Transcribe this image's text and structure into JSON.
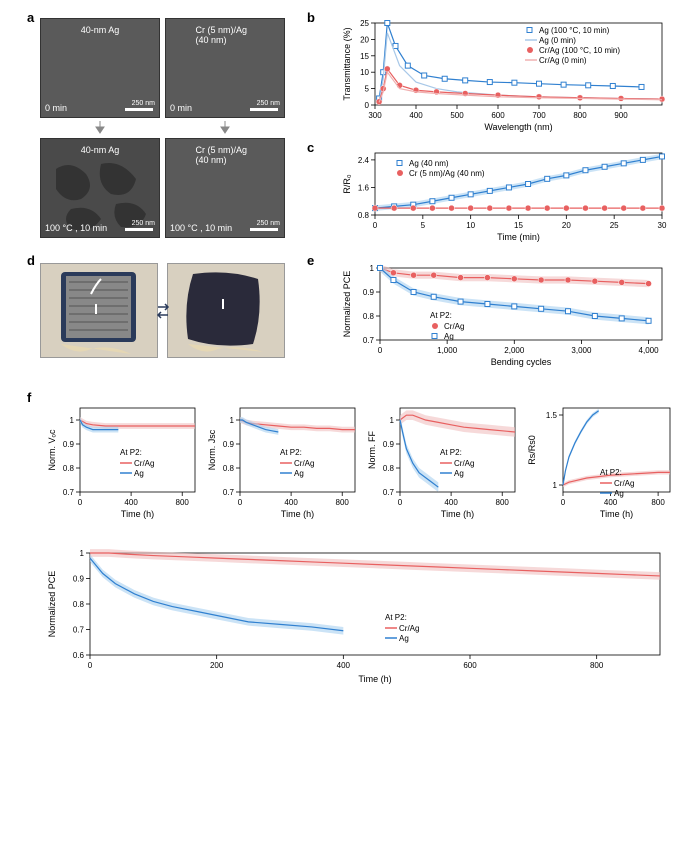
{
  "panel_a": {
    "label": "a",
    "images": [
      {
        "title": "40-nm Ag",
        "time": "0 min",
        "scale": "250 nm"
      },
      {
        "title": "Cr (5 nm)/Ag (40 nm)",
        "time": "0 min",
        "scale": "250 nm"
      },
      {
        "title": "40-nm Ag",
        "time": "100 °C , 10 min",
        "scale": "250 nm"
      },
      {
        "title": "Cr (5 nm)/Ag (40 nm)",
        "time": "100 °C , 10 min",
        "scale": "250 nm"
      }
    ]
  },
  "panel_b": {
    "label": "b",
    "type": "line",
    "title": "",
    "xlabel": "Wavelength (nm)",
    "ylabel": "Transmittance (%)",
    "xlim": [
      300,
      1000
    ],
    "ylim": [
      0,
      25
    ],
    "xticks": [
      300,
      400,
      500,
      600,
      700,
      800,
      900
    ],
    "yticks": [
      0,
      5,
      10,
      15,
      20,
      25
    ],
    "series": [
      {
        "name": "Ag (100 °C, 10 min)",
        "color": "#3080d0",
        "marker": "square",
        "x": [
          310,
          320,
          330,
          350,
          380,
          420,
          470,
          520,
          580,
          640,
          700,
          760,
          820,
          880,
          950
        ],
        "y": [
          2,
          10,
          25,
          18,
          12,
          9,
          8,
          7.5,
          7,
          6.8,
          6.5,
          6.2,
          6,
          5.8,
          5.5
        ]
      },
      {
        "name": "Ag (0 min)",
        "color": "#a8c8e8",
        "marker": "none",
        "x": [
          310,
          320,
          330,
          360,
          400,
          450,
          500,
          600,
          700,
          800,
          900,
          1000
        ],
        "y": [
          1,
          8,
          22,
          12,
          7,
          5,
          4,
          3,
          2.5,
          2.2,
          2,
          1.8
        ]
      },
      {
        "name": "Cr/Ag (100 °C, 10 min)",
        "color": "#e86060",
        "marker": "circle",
        "x": [
          310,
          320,
          330,
          360,
          400,
          450,
          520,
          600,
          700,
          800,
          900,
          1000
        ],
        "y": [
          1,
          5,
          11,
          6,
          4.5,
          4,
          3.5,
          3,
          2.5,
          2.2,
          2,
          1.8
        ]
      },
      {
        "name": "Cr/Ag (0 min)",
        "color": "#f0b0b0",
        "marker": "none",
        "x": [
          310,
          320,
          330,
          360,
          400,
          450,
          520,
          600,
          700,
          800,
          900,
          1000
        ],
        "y": [
          0.8,
          4,
          10,
          5,
          4,
          3.5,
          3,
          2.5,
          2.2,
          2,
          1.8,
          1.6
        ]
      }
    ]
  },
  "panel_c": {
    "label": "c",
    "type": "line",
    "xlabel": "Time (min)",
    "ylabel": "R/R₀",
    "xlim": [
      0,
      30
    ],
    "ylim": [
      0.8,
      2.6
    ],
    "xticks": [
      0,
      5,
      10,
      15,
      20,
      25,
      30
    ],
    "yticks": [
      0.8,
      1.6,
      2.4
    ],
    "series": [
      {
        "name": "Ag (40 nm)",
        "color": "#3080d0",
        "fillcolor": "#a8d0f0",
        "marker": "square",
        "x": [
          0,
          2,
          4,
          6,
          8,
          10,
          12,
          14,
          16,
          18,
          20,
          22,
          24,
          26,
          28,
          30
        ],
        "y": [
          1.0,
          1.05,
          1.1,
          1.2,
          1.3,
          1.4,
          1.5,
          1.6,
          1.7,
          1.85,
          1.95,
          2.1,
          2.2,
          2.3,
          2.4,
          2.5
        ]
      },
      {
        "name": "Cr (5 nm)/Ag (40 nm)",
        "color": "#e86060",
        "marker": "circle",
        "x": [
          0,
          2,
          4,
          6,
          8,
          10,
          12,
          14,
          16,
          18,
          20,
          22,
          24,
          26,
          28,
          30
        ],
        "y": [
          1.0,
          1.0,
          1.0,
          1.0,
          1.0,
          1.0,
          1.0,
          1.0,
          1.0,
          1.0,
          1.0,
          1.0,
          1.0,
          1.0,
          1.0,
          1.0
        ]
      }
    ]
  },
  "panel_d": {
    "label": "d"
  },
  "panel_e": {
    "label": "e",
    "type": "line",
    "xlabel": "Bending cycles",
    "ylabel": "Normalized PCE",
    "xlim": [
      0,
      4200
    ],
    "ylim": [
      0.7,
      1.0
    ],
    "xticks": [
      0,
      1000,
      2000,
      3000,
      4000
    ],
    "yticks": [
      0.7,
      0.8,
      0.9,
      1.0
    ],
    "legend_title": "At P2:",
    "series": [
      {
        "name": "Cr/Ag",
        "color": "#e86060",
        "fillcolor": "#f0c0c0",
        "marker": "circle",
        "x": [
          0,
          200,
          500,
          800,
          1200,
          1600,
          2000,
          2400,
          2800,
          3200,
          3600,
          4000
        ],
        "y": [
          1.0,
          0.98,
          0.97,
          0.97,
          0.96,
          0.96,
          0.955,
          0.95,
          0.95,
          0.945,
          0.94,
          0.935
        ]
      },
      {
        "name": "Ag",
        "color": "#3080d0",
        "fillcolor": "#a8d0f0",
        "marker": "square",
        "x": [
          0,
          200,
          500,
          800,
          1200,
          1600,
          2000,
          2400,
          2800,
          3200,
          3600,
          4000
        ],
        "y": [
          1.0,
          0.95,
          0.9,
          0.88,
          0.86,
          0.85,
          0.84,
          0.83,
          0.82,
          0.8,
          0.79,
          0.78
        ]
      }
    ]
  },
  "panel_f": {
    "label": "f",
    "voc": {
      "xlabel": "Time (h)",
      "ylabel": "Norm. Vₒc",
      "xlim": [
        0,
        900
      ],
      "ylim": [
        0.7,
        1.05
      ],
      "xticks": [
        0,
        400,
        800
      ],
      "yticks": [
        0.7,
        0.8,
        0.9,
        1.0
      ],
      "legend_title": "At P2:",
      "series": [
        {
          "name": "Cr/Ag",
          "color": "#e86060",
          "fillcolor": "#f0c0c0",
          "x": [
            0,
            50,
            100,
            200,
            300,
            400,
            500,
            600,
            700,
            800,
            900
          ],
          "y": [
            1.0,
            0.985,
            0.98,
            0.975,
            0.975,
            0.975,
            0.975,
            0.975,
            0.975,
            0.975,
            0.975
          ]
        },
        {
          "name": "Ag",
          "color": "#3080d0",
          "fillcolor": "#a8d0f0",
          "x": [
            0,
            20,
            50,
            100,
            150,
            200,
            250,
            300
          ],
          "y": [
            1.0,
            0.98,
            0.97,
            0.96,
            0.96,
            0.96,
            0.96,
            0.96
          ]
        }
      ]
    },
    "jsc": {
      "xlabel": "Time (h)",
      "ylabel": "Norm. Jsc",
      "xlim": [
        0,
        900
      ],
      "ylim": [
        0.7,
        1.05
      ],
      "xticks": [
        0,
        400,
        800
      ],
      "yticks": [
        0.7,
        0.8,
        0.9,
        1.0
      ],
      "legend_title": "At P2:",
      "series": [
        {
          "name": "Cr/Ag",
          "color": "#e86060",
          "fillcolor": "#f0c0c0",
          "x": [
            0,
            50,
            100,
            200,
            300,
            400,
            500,
            600,
            700,
            800,
            900
          ],
          "y": [
            1.0,
            0.99,
            0.985,
            0.98,
            0.975,
            0.97,
            0.97,
            0.965,
            0.965,
            0.96,
            0.96
          ]
        },
        {
          "name": "Ag",
          "color": "#3080d0",
          "fillcolor": "#a8d0f0",
          "x": [
            0,
            20,
            50,
            100,
            150,
            200,
            250,
            300
          ],
          "y": [
            1.0,
            1.0,
            0.99,
            0.98,
            0.97,
            0.96,
            0.955,
            0.95
          ]
        }
      ]
    },
    "ff": {
      "xlabel": "Time (h)",
      "ylabel": "Norm. FF",
      "xlim": [
        0,
        900
      ],
      "ylim": [
        0.7,
        1.05
      ],
      "xticks": [
        0,
        400,
        800
      ],
      "yticks": [
        0.7,
        0.8,
        0.9,
        1.0
      ],
      "legend_title": "At P2:",
      "series": [
        {
          "name": "Cr/Ag",
          "color": "#e86060",
          "fillcolor": "#f0c0c0",
          "x": [
            0,
            50,
            100,
            200,
            300,
            400,
            500,
            600,
            700,
            800,
            900
          ],
          "y": [
            1.0,
            1.02,
            1.02,
            1.0,
            0.99,
            0.98,
            0.97,
            0.965,
            0.96,
            0.955,
            0.95
          ]
        },
        {
          "name": "Ag",
          "color": "#3080d0",
          "fillcolor": "#a8d0f0",
          "x": [
            0,
            20,
            50,
            100,
            150,
            200,
            250,
            300
          ],
          "y": [
            1.0,
            0.95,
            0.88,
            0.82,
            0.78,
            0.76,
            0.74,
            0.72
          ]
        }
      ]
    },
    "rs": {
      "xlabel": "Time (h)",
      "ylabel": "Rs/Rs0",
      "xlim": [
        0,
        900
      ],
      "ylim": [
        0.95,
        1.55
      ],
      "xticks": [
        0,
        400,
        800
      ],
      "yticks": [
        1.0,
        1.5
      ],
      "legend_title": "At P2:",
      "series": [
        {
          "name": "Cr/Ag",
          "color": "#e86060",
          "fillcolor": "#f0c0c0",
          "x": [
            0,
            50,
            100,
            200,
            300,
            400,
            500,
            600,
            700,
            800,
            900
          ],
          "y": [
            1.0,
            1.02,
            1.03,
            1.05,
            1.06,
            1.07,
            1.075,
            1.08,
            1.085,
            1.09,
            1.09
          ]
        },
        {
          "name": "Ag",
          "color": "#3080d0",
          "fillcolor": "#a8d0f0",
          "x": [
            0,
            20,
            50,
            100,
            150,
            200,
            250,
            300
          ],
          "y": [
            1.0,
            1.1,
            1.2,
            1.3,
            1.38,
            1.45,
            1.5,
            1.53
          ]
        }
      ]
    },
    "pce": {
      "xlabel": "Time (h)",
      "ylabel": "Normalized PCE",
      "xlim": [
        0,
        900
      ],
      "ylim": [
        0.6,
        1.0
      ],
      "xticks": [
        0,
        200,
        400,
        600,
        800
      ],
      "yticks": [
        0.6,
        0.7,
        0.8,
        0.9,
        1.0
      ],
      "legend_title": "At P2:",
      "series": [
        {
          "name": "Cr/Ag",
          "color": "#e86060",
          "fillcolor": "#f0c0c0",
          "x": [
            0,
            30,
            60,
            100,
            150,
            200,
            250,
            300,
            350,
            400,
            450,
            500,
            550,
            600,
            650,
            700,
            750,
            800,
            850,
            900
          ],
          "y": [
            1.0,
            1.0,
            0.995,
            0.99,
            0.985,
            0.98,
            0.975,
            0.97,
            0.965,
            0.96,
            0.955,
            0.95,
            0.945,
            0.94,
            0.935,
            0.93,
            0.925,
            0.92,
            0.915,
            0.91
          ]
        },
        {
          "name": "Ag",
          "color": "#3080d0",
          "fillcolor": "#a8d0f0",
          "x": [
            0,
            20,
            40,
            70,
            100,
            130,
            170,
            210,
            250,
            300,
            350,
            400
          ],
          "y": [
            0.98,
            0.92,
            0.88,
            0.84,
            0.81,
            0.79,
            0.77,
            0.75,
            0.73,
            0.72,
            0.71,
            0.695
          ]
        }
      ]
    }
  }
}
